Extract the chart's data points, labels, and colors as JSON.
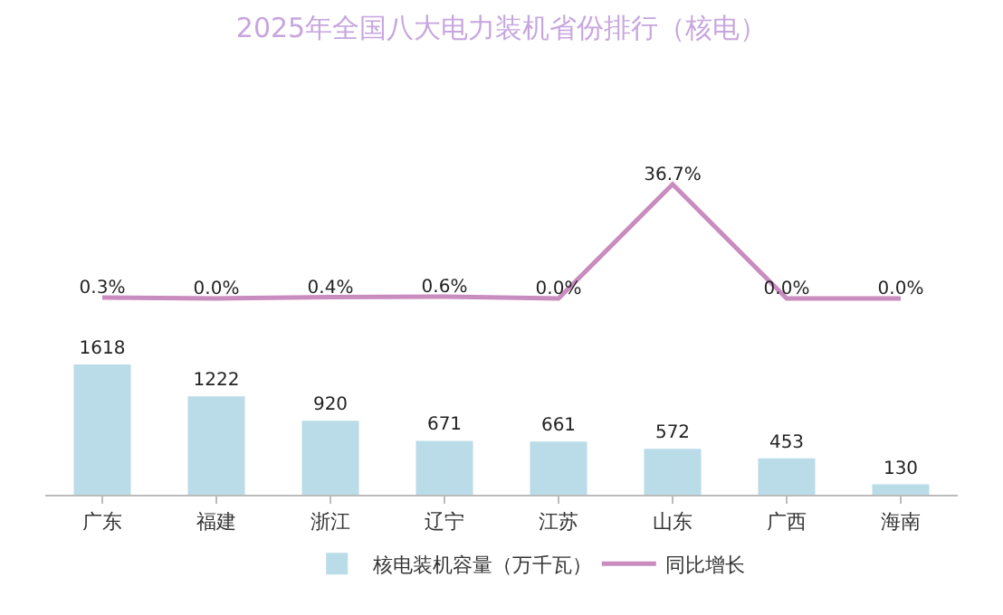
{
  "chart_data": [
    {
      "type": "line",
      "title": "2025年全国八大电力装机省份排行（核电）",
      "categories": [
        null,
        null,
        null,
        null,
        null,
        null,
        null,
        null
      ],
      "series": [
        {
          "name": "同比增长",
          "color": "#c98cbf",
          "values": [
            0.3,
            0.0,
            0.4,
            0.6,
            0.0,
            36.7,
            0.0,
            0.0
          ],
          "value_labels": [
            "0.3%",
            "0.0%",
            "0.4%",
            "0.6%",
            "0.0%",
            "36.7%",
            "0.0%",
            "0.0%"
          ]
        }
      ],
      "tick_labels": false,
      "legend": "bottom",
      "marker": "none",
      "line_style": "solid"
    },
    {
      "type": "bar",
      "categories": [
        "广东",
        "福建",
        "浙江",
        "辽宁",
        "江苏",
        "山东",
        "广西",
        "海南"
      ],
      "series": [
        {
          "name": "核电装机容量（万千瓦）",
          "color": "#b9dce8",
          "values": [
            1618,
            1222,
            920,
            671,
            661,
            572,
            453,
            130
          ],
          "value_labels": [
            "1618",
            "1222",
            "920",
            "671",
            "661",
            "572",
            "453",
            "130"
          ]
        }
      ],
      "tick_labels": "x",
      "legend": "bottom"
    }
  ]
}
